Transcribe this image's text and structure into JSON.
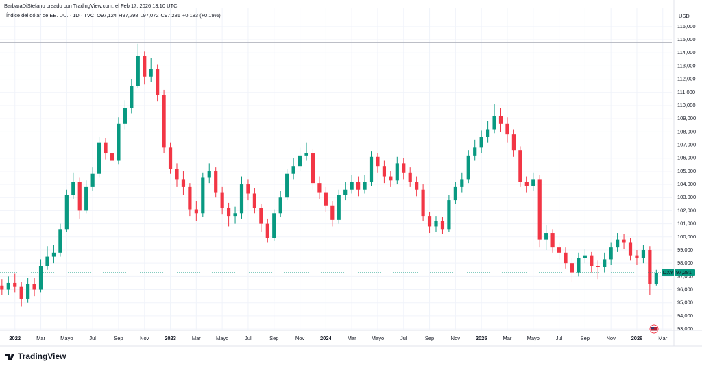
{
  "header": {
    "credit": "BarbaraDiStefano creado con TradingView.com, el Feb 17, 2026 13:10 UTC",
    "symbol": "Índice del dólar de EE. UU. · 1D · TVC",
    "ohlc": [
      {
        "key": "O",
        "value": "97,124"
      },
      {
        "key": "H",
        "value": "97,298"
      },
      {
        "key": "L",
        "value": "97,072"
      },
      {
        "key": "C",
        "value": "97,281"
      }
    ],
    "change": "+0,183 (+0,19%)",
    "logo": "TradingView"
  },
  "chart_data": {
    "type": "candlestick",
    "y_axis_label": "USD",
    "grid": true,
    "up_color": "#089981",
    "down_color": "#f23645",
    "x": [
      -1,
      -0.5,
      0,
      0.5,
      1,
      1.5,
      2,
      2.5,
      3,
      3.5,
      4,
      4.5,
      5,
      5.5,
      6,
      6.5,
      7,
      7.5,
      8,
      8.5,
      9,
      9.5,
      10,
      10.5,
      11,
      11.5,
      12,
      12.5,
      13,
      13.5,
      14,
      14.5,
      15,
      15.5,
      16,
      16.5,
      17,
      17.5,
      18,
      18.5,
      19,
      19.5,
      20,
      20.5,
      21,
      21.5,
      22,
      22.5,
      23,
      23.5,
      24,
      24.5,
      25,
      25.5,
      26,
      26.5,
      27,
      27.5,
      28,
      28.5,
      29,
      29.5,
      30,
      30.5,
      31,
      31.5,
      32,
      32.5,
      33,
      33.5,
      34,
      34.5,
      35,
      35.5,
      36,
      36.5,
      37,
      37.5,
      38,
      38.5,
      39,
      39.5,
      40,
      40.5,
      41,
      41.5,
      42,
      42.5,
      43,
      43.5,
      44,
      44.5,
      45,
      45.5,
      46,
      46.5,
      47,
      47.5,
      48,
      48.5,
      49,
      49.5
    ],
    "open": [
      96.3,
      96.0,
      96.5,
      96.2,
      95.3,
      96.4,
      96.0,
      97.8,
      98.5,
      98.8,
      100.6,
      103.2,
      104.2,
      102.0,
      103.8,
      104.8,
      107.2,
      106.4,
      105.8,
      108.6,
      109.8,
      111.5,
      113.8,
      112.2,
      112.8,
      110.8,
      106.8,
      105.2,
      104.4,
      103.8,
      102.1,
      101.8,
      104.5,
      105.0,
      103.4,
      102.2,
      101.6,
      101.8,
      104.0,
      103.3,
      102.2,
      101.0,
      99.9,
      101.8,
      103.0,
      104.8,
      105.4,
      106.2,
      106.4,
      104.1,
      103.4,
      102.4,
      101.3,
      103.2,
      103.6,
      104.2,
      103.6,
      104.2,
      106.1,
      105.4,
      104.6,
      104.3,
      105.6,
      104.9,
      104.2,
      103.6,
      101.6,
      100.8,
      101.2,
      100.6,
      102.8,
      103.8,
      104.4,
      106.2,
      106.8,
      107.6,
      108.2,
      109.2,
      108.6,
      107.8,
      106.6,
      104.2,
      103.9,
      104.4,
      99.8,
      100.3,
      99.2,
      98.8,
      98.0,
      97.3,
      98.4,
      98.6,
      97.8,
      97.7,
      98.3,
      99.2,
      99.8,
      99.6,
      98.6,
      98.4,
      99.0,
      96.4
    ],
    "high": [
      96.8,
      97.0,
      97.2,
      96.6,
      96.9,
      96.9,
      98.3,
      99.3,
      99.4,
      101.0,
      103.6,
      104.9,
      104.5,
      104.3,
      105.3,
      107.6,
      107.5,
      106.8,
      109.1,
      110.4,
      112.0,
      114.7,
      114.1,
      113.6,
      113.1,
      111.2,
      107.2,
      105.6,
      105.0,
      104.1,
      102.7,
      104.9,
      105.6,
      105.3,
      103.8,
      102.6,
      102.3,
      104.6,
      104.4,
      103.7,
      102.5,
      101.4,
      102.1,
      103.5,
      105.2,
      106.0,
      106.8,
      107.2,
      106.7,
      104.6,
      103.8,
      102.7,
      103.6,
      104.2,
      104.7,
      104.6,
      104.7,
      106.5,
      106.4,
      105.8,
      105.0,
      106.1,
      106.0,
      105.3,
      104.6,
      104.0,
      101.9,
      101.6,
      101.5,
      103.2,
      104.2,
      104.9,
      106.6,
      107.4,
      108.1,
      108.8,
      110.1,
      109.8,
      109.1,
      108.2,
      106.9,
      104.6,
      104.9,
      104.7,
      100.9,
      100.6,
      99.6,
      99.2,
      98.4,
      98.8,
      99.1,
      98.9,
      98.2,
      98.8,
      99.6,
      100.3,
      100.2,
      99.9,
      99.0,
      99.4,
      99.3,
      97.5
    ],
    "low": [
      95.6,
      95.6,
      95.8,
      94.7,
      95.0,
      95.5,
      95.8,
      97.5,
      98.0,
      98.5,
      100.4,
      102.9,
      101.4,
      101.8,
      103.5,
      104.5,
      105.9,
      104.6,
      105.5,
      108.2,
      109.4,
      111.3,
      111.6,
      111.8,
      110.3,
      106.4,
      104.8,
      103.8,
      103.2,
      101.6,
      101.2,
      101.5,
      104.1,
      103.0,
      101.7,
      100.8,
      101.0,
      101.4,
      102.8,
      101.8,
      100.4,
      99.6,
      99.7,
      101.5,
      102.8,
      104.4,
      105.0,
      105.8,
      103.6,
      102.9,
      101.9,
      100.8,
      101.0,
      102.8,
      103.3,
      103.1,
      103.3,
      103.9,
      104.9,
      104.1,
      103.8,
      104.0,
      104.4,
      103.8,
      103.1,
      101.2,
      100.3,
      100.4,
      100.2,
      100.4,
      102.5,
      103.4,
      104.1,
      105.8,
      106.4,
      107.2,
      107.9,
      108.0,
      107.2,
      106.1,
      103.8,
      103.4,
      103.5,
      99.2,
      99.0,
      98.8,
      98.3,
      97.6,
      96.6,
      97.0,
      98.0,
      97.3,
      96.8,
      97.3,
      97.9,
      98.9,
      99.1,
      98.2,
      97.9,
      98.0,
      95.6,
      96.3
    ],
    "close": [
      96.0,
      96.5,
      96.2,
      95.3,
      96.4,
      96.0,
      97.8,
      98.5,
      98.8,
      100.6,
      103.2,
      104.2,
      102.0,
      103.8,
      104.8,
      107.2,
      106.4,
      105.8,
      108.6,
      109.8,
      111.5,
      113.8,
      112.2,
      112.8,
      110.8,
      106.8,
      105.2,
      104.4,
      103.8,
      102.1,
      101.8,
      104.5,
      105.0,
      103.4,
      102.2,
      101.6,
      101.8,
      104.0,
      103.3,
      102.2,
      101.0,
      99.9,
      101.8,
      103.0,
      104.8,
      105.4,
      106.2,
      106.4,
      104.1,
      103.4,
      102.4,
      101.3,
      103.2,
      103.6,
      104.2,
      103.6,
      104.2,
      106.1,
      105.4,
      104.6,
      104.3,
      105.6,
      104.9,
      104.2,
      103.6,
      101.6,
      100.8,
      101.2,
      100.6,
      102.8,
      103.8,
      104.4,
      106.2,
      106.8,
      107.6,
      108.2,
      109.2,
      108.6,
      107.8,
      106.6,
      104.2,
      103.9,
      104.4,
      99.8,
      100.3,
      99.2,
      98.8,
      98.0,
      97.3,
      98.4,
      98.6,
      97.8,
      97.7,
      98.3,
      99.2,
      99.8,
      99.6,
      98.6,
      98.4,
      99.0,
      96.4,
      97.281
    ],
    "range_lines": [
      114.77,
      94.6
    ],
    "last_price": {
      "symbol": "DXY",
      "value": 97.281,
      "label": "97,281"
    },
    "xlim": [
      -1.15,
      50.7
    ],
    "ylim": [
      92.9,
      117.4
    ],
    "xticks": [
      {
        "value": 0,
        "label": "2022"
      },
      {
        "value": 2,
        "label": "Mar"
      },
      {
        "value": 4,
        "label": "Mayo"
      },
      {
        "value": 6,
        "label": "Jul"
      },
      {
        "value": 8,
        "label": "Sep"
      },
      {
        "value": 10,
        "label": "Nov"
      },
      {
        "value": 12,
        "label": "2023"
      },
      {
        "value": 14,
        "label": "Mar"
      },
      {
        "value": 16,
        "label": "Mayo"
      },
      {
        "value": 18,
        "label": "Jul"
      },
      {
        "value": 20,
        "label": "Sep"
      },
      {
        "value": 22,
        "label": "Nov"
      },
      {
        "value": 24,
        "label": "2024"
      },
      {
        "value": 26,
        "label": "Mar"
      },
      {
        "value": 28,
        "label": "Mayo"
      },
      {
        "value": 30,
        "label": "Jul"
      },
      {
        "value": 32,
        "label": "Sep"
      },
      {
        "value": 34,
        "label": "Nov"
      },
      {
        "value": 36,
        "label": "2025"
      },
      {
        "value": 38,
        "label": "Mar"
      },
      {
        "value": 40,
        "label": "Mayo"
      },
      {
        "value": 42,
        "label": "Jul"
      },
      {
        "value": 44,
        "label": "Sep"
      },
      {
        "value": 46,
        "label": "Nov"
      },
      {
        "value": 48,
        "label": "2026"
      },
      {
        "value": 50,
        "label": "Mar"
      }
    ],
    "yticks": [
      {
        "value": 93,
        "label": "93,000"
      },
      {
        "value": 94,
        "label": "94,000"
      },
      {
        "value": 95,
        "label": "95,000"
      },
      {
        "value": 96,
        "label": "96,000"
      },
      {
        "value": 97,
        "label": "97,000"
      },
      {
        "value": 98,
        "label": "98,000"
      },
      {
        "value": 99,
        "label": "99,000"
      },
      {
        "value": 100,
        "label": "100,000"
      },
      {
        "value": 101,
        "label": "101,000"
      },
      {
        "value": 102,
        "label": "102,000"
      },
      {
        "value": 103,
        "label": "103,000"
      },
      {
        "value": 104,
        "label": "104,000"
      },
      {
        "value": 105,
        "label": "105,000"
      },
      {
        "value": 106,
        "label": "106,000"
      },
      {
        "value": 107,
        "label": "107,000"
      },
      {
        "value": 108,
        "label": "108,000"
      },
      {
        "value": 109,
        "label": "109,000"
      },
      {
        "value": 110,
        "label": "110,000"
      },
      {
        "value": 111,
        "label": "111,000"
      },
      {
        "value": 112,
        "label": "112,000"
      },
      {
        "value": 113,
        "label": "113,000"
      },
      {
        "value": 114,
        "label": "114,000"
      },
      {
        "value": 115,
        "label": "115,000"
      },
      {
        "value": 116,
        "label": "116,000"
      }
    ]
  }
}
